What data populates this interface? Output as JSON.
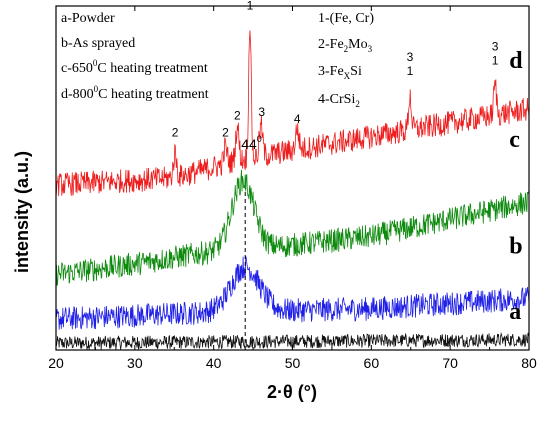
{
  "chart_data": {
    "type": "line",
    "title": "",
    "xlabel": "2·θ (°)",
    "ylabel": "intensity (a.u.)",
    "xlim": [
      20,
      80
    ],
    "xticks": [
      20,
      30,
      40,
      50,
      60,
      70,
      80
    ],
    "yticks_shown": false,
    "grid": false,
    "legend_placement": "top-left",
    "sample_legend": [
      {
        "letter": "a",
        "lines": [
          "a-Powder"
        ]
      },
      {
        "letter": "b",
        "lines": [
          "b-As sprayed"
        ]
      },
      {
        "letter": "c",
        "lines": [
          "c-650",
          "0",
          "C heating treatment"
        ]
      },
      {
        "letter": "d",
        "lines": [
          "d-800",
          "0",
          "C heating treatment"
        ]
      }
    ],
    "phase_legend": [
      {
        "id": "1",
        "text": "1-(Fe, Cr)"
      },
      {
        "id": "2",
        "text": "2-Fe",
        "sub1": "2",
        "mid": "Mo",
        "sub2": "3"
      },
      {
        "id": "3",
        "text": "3-Fe",
        "sub1": "X",
        "mid": "Si",
        "sub2": ""
      },
      {
        "id": "4",
        "text": "4-CrSi",
        "sub1": "2",
        "mid": "",
        "sub2": ""
      }
    ],
    "reference_line": {
      "x": 44,
      "label": "44",
      "sup": "0"
    },
    "series": [
      {
        "name": "a",
        "color": "#111111",
        "noise": 0.02,
        "baseline": [
          [
            20,
            0.02
          ],
          [
            80,
            0.03
          ]
        ],
        "humps": [],
        "peaks": []
      },
      {
        "name": "b",
        "color": "#1f1fe8",
        "noise": 0.035,
        "baseline": [
          [
            20,
            0.09
          ],
          [
            40,
            0.11
          ],
          [
            60,
            0.12
          ],
          [
            80,
            0.15
          ]
        ],
        "humps": [
          {
            "x": 44,
            "h": 0.13,
            "w": 2.5
          }
        ],
        "peaks": []
      },
      {
        "name": "c",
        "color": "#0e8a0e",
        "noise": 0.035,
        "baseline": [
          [
            20,
            0.22
          ],
          [
            30,
            0.25
          ],
          [
            38,
            0.28
          ],
          [
            48,
            0.3
          ],
          [
            60,
            0.33
          ],
          [
            70,
            0.38
          ],
          [
            80,
            0.43
          ]
        ],
        "humps": [
          {
            "x": 43.7,
            "h": 0.2,
            "w": 2.0
          }
        ],
        "peaks": []
      },
      {
        "name": "d",
        "color": "#ee1c1c",
        "noise": 0.035,
        "baseline": [
          [
            20,
            0.48
          ],
          [
            35,
            0.5
          ],
          [
            43,
            0.55
          ],
          [
            50,
            0.58
          ],
          [
            60,
            0.62
          ],
          [
            70,
            0.66
          ],
          [
            80,
            0.7
          ]
        ],
        "humps": [],
        "peaks": [
          {
            "x": 35.1,
            "h": 0.07,
            "w": 0.3
          },
          {
            "x": 41.5,
            "h": 0.05,
            "w": 0.3
          },
          {
            "x": 43.0,
            "h": 0.1,
            "w": 0.3
          },
          {
            "x": 44.6,
            "h": 0.4,
            "w": 0.22
          },
          {
            "x": 46.0,
            "h": 0.09,
            "w": 0.3
          },
          {
            "x": 50.6,
            "h": 0.06,
            "w": 0.3
          },
          {
            "x": 64.9,
            "h": 0.1,
            "w": 0.25
          },
          {
            "x": 75.7,
            "h": 0.09,
            "w": 0.25
          }
        ]
      }
    ],
    "peak_labels": [
      {
        "text": "2",
        "x": 35.1,
        "y": 0.62
      },
      {
        "text": "2",
        "x": 41.5,
        "y": 0.62
      },
      {
        "text": "2",
        "x": 43.0,
        "y": 0.67
      },
      {
        "text": "1",
        "x": 44.6,
        "y": 0.99
      },
      {
        "text": "3",
        "x": 46.1,
        "y": 0.68
      },
      {
        "text": "4",
        "x": 50.6,
        "y": 0.66
      },
      {
        "text": "3",
        "x": 64.9,
        "y": 0.84
      },
      {
        "text": "1",
        "x": 64.9,
        "y": 0.8
      },
      {
        "text": "3",
        "x": 75.7,
        "y": 0.87
      },
      {
        "text": "1",
        "x": 75.7,
        "y": 0.83
      }
    ],
    "curve_labels": [
      {
        "text": "d",
        "x": 77.5,
        "y": 0.82
      },
      {
        "text": "c",
        "x": 77.5,
        "y": 0.59
      },
      {
        "text": "b",
        "x": 77.5,
        "y": 0.28
      },
      {
        "text": "a",
        "x": 77.5,
        "y": 0.09
      }
    ]
  }
}
